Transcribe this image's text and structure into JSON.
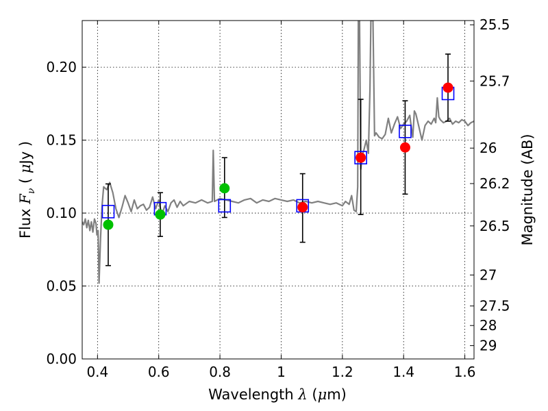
{
  "chart_data": {
    "type": "scatter",
    "xlabel": {
      "prefix": "Wavelength  ",
      "symbol": "λ",
      "unit_open": " (",
      "mu": "μ",
      "unit_rest": "m)"
    },
    "ylabel": {
      "prefix": "Flux  ",
      "symbol": "F",
      "sub": "ν",
      "unit_open": "  ( ",
      "mu": "μ",
      "unit_rest": "Jy )"
    },
    "ylabel_right": "Magnitude (AB)",
    "xlim": [
      0.35,
      1.63
    ],
    "ylim": [
      0.0,
      0.232
    ],
    "x_ticks": [
      0.4,
      0.6,
      0.8,
      1.0,
      1.2,
      1.4,
      1.6
    ],
    "x_tick_labels": [
      "0.4",
      "0.6",
      "0.8",
      "1",
      "1.2",
      "1.4",
      "1.6"
    ],
    "y_ticks": [
      0.0,
      0.05,
      0.1,
      0.15,
      0.2
    ],
    "y_tick_labels": [
      "0.00",
      "0.05",
      "0.10",
      "0.15",
      "0.20"
    ],
    "right_ticks": [
      {
        "label": "25.5",
        "mag": 25.5
      },
      {
        "label": "25.7",
        "mag": 25.7
      },
      {
        "label": "26",
        "mag": 26.0
      },
      {
        "label": "26.2",
        "mag": 26.2
      },
      {
        "label": "26.5",
        "mag": 26.5
      },
      {
        "label": "27",
        "mag": 27.0
      },
      {
        "label": "27.5",
        "mag": 27.5
      },
      {
        "label": "28",
        "mag": 28.0
      },
      {
        "label": "29",
        "mag": 29.0
      }
    ],
    "grid": true,
    "colors": {
      "spectrum": "#808080",
      "green_points": "#00c000",
      "red_points": "#ff0000",
      "model_boxes": "#0000ff",
      "errorbars": "#000000"
    },
    "spectrum": [
      [
        0.35,
        0.094
      ],
      [
        0.355,
        0.092
      ],
      [
        0.36,
        0.096
      ],
      [
        0.365,
        0.09
      ],
      [
        0.37,
        0.095
      ],
      [
        0.375,
        0.088
      ],
      [
        0.38,
        0.094
      ],
      [
        0.385,
        0.087
      ],
      [
        0.39,
        0.096
      ],
      [
        0.395,
        0.093
      ],
      [
        0.398,
        0.085
      ],
      [
        0.402,
        0.088
      ],
      [
        0.405,
        0.052
      ],
      [
        0.41,
        0.083
      ],
      [
        0.415,
        0.105
      ],
      [
        0.42,
        0.118
      ],
      [
        0.43,
        0.116
      ],
      [
        0.44,
        0.121
      ],
      [
        0.45,
        0.114
      ],
      [
        0.46,
        0.103
      ],
      [
        0.47,
        0.097
      ],
      [
        0.48,
        0.104
      ],
      [
        0.49,
        0.112
      ],
      [
        0.5,
        0.107
      ],
      [
        0.51,
        0.101
      ],
      [
        0.52,
        0.109
      ],
      [
        0.53,
        0.103
      ],
      [
        0.54,
        0.105
      ],
      [
        0.55,
        0.106
      ],
      [
        0.56,
        0.102
      ],
      [
        0.57,
        0.104
      ],
      [
        0.58,
        0.111
      ],
      [
        0.59,
        0.103
      ],
      [
        0.6,
        0.109
      ],
      [
        0.61,
        0.099
      ],
      [
        0.62,
        0.105
      ],
      [
        0.63,
        0.101
      ],
      [
        0.64,
        0.107
      ],
      [
        0.65,
        0.109
      ],
      [
        0.66,
        0.104
      ],
      [
        0.67,
        0.108
      ],
      [
        0.68,
        0.105
      ],
      [
        0.7,
        0.108
      ],
      [
        0.72,
        0.107
      ],
      [
        0.74,
        0.109
      ],
      [
        0.76,
        0.107
      ],
      [
        0.775,
        0.108
      ],
      [
        0.778,
        0.143
      ],
      [
        0.782,
        0.108
      ],
      [
        0.8,
        0.11
      ],
      [
        0.82,
        0.109
      ],
      [
        0.84,
        0.108
      ],
      [
        0.86,
        0.107
      ],
      [
        0.88,
        0.109
      ],
      [
        0.9,
        0.11
      ],
      [
        0.92,
        0.107
      ],
      [
        0.94,
        0.109
      ],
      [
        0.96,
        0.108
      ],
      [
        0.98,
        0.11
      ],
      [
        1.0,
        0.109
      ],
      [
        1.02,
        0.108
      ],
      [
        1.04,
        0.109
      ],
      [
        1.06,
        0.107
      ],
      [
        1.08,
        0.108
      ],
      [
        1.1,
        0.107
      ],
      [
        1.12,
        0.108
      ],
      [
        1.14,
        0.107
      ],
      [
        1.16,
        0.106
      ],
      [
        1.18,
        0.107
      ],
      [
        1.2,
        0.105
      ],
      [
        1.21,
        0.108
      ],
      [
        1.222,
        0.106
      ],
      [
        1.23,
        0.112
      ],
      [
        1.238,
        0.102
      ],
      [
        1.245,
        0.101
      ],
      [
        1.25,
        0.118
      ],
      [
        1.252,
        0.232
      ],
      [
        1.256,
        0.232
      ],
      [
        1.26,
        0.13
      ],
      [
        1.265,
        0.14
      ],
      [
        1.27,
        0.143
      ],
      [
        1.278,
        0.15
      ],
      [
        1.285,
        0.141
      ],
      [
        1.29,
        0.185
      ],
      [
        1.293,
        0.232
      ],
      [
        1.3,
        0.232
      ],
      [
        1.305,
        0.153
      ],
      [
        1.31,
        0.155
      ],
      [
        1.32,
        0.152
      ],
      [
        1.33,
        0.151
      ],
      [
        1.34,
        0.154
      ],
      [
        1.35,
        0.165
      ],
      [
        1.36,
        0.155
      ],
      [
        1.37,
        0.161
      ],
      [
        1.38,
        0.166
      ],
      [
        1.39,
        0.158
      ],
      [
        1.4,
        0.161
      ],
      [
        1.41,
        0.163
      ],
      [
        1.42,
        0.167
      ],
      [
        1.425,
        0.159
      ],
      [
        1.43,
        0.152
      ],
      [
        1.435,
        0.17
      ],
      [
        1.44,
        0.168
      ],
      [
        1.45,
        0.159
      ],
      [
        1.46,
        0.15
      ],
      [
        1.47,
        0.16
      ],
      [
        1.48,
        0.163
      ],
      [
        1.49,
        0.161
      ],
      [
        1.5,
        0.165
      ],
      [
        1.505,
        0.162
      ],
      [
        1.51,
        0.179
      ],
      [
        1.515,
        0.166
      ],
      [
        1.52,
        0.164
      ],
      [
        1.53,
        0.162
      ],
      [
        1.54,
        0.163
      ],
      [
        1.55,
        0.165
      ],
      [
        1.56,
        0.161
      ],
      [
        1.57,
        0.163
      ],
      [
        1.58,
        0.162
      ],
      [
        1.59,
        0.164
      ],
      [
        1.6,
        0.163
      ],
      [
        1.61,
        0.16
      ],
      [
        1.62,
        0.162
      ],
      [
        1.63,
        0.163
      ]
    ],
    "green_points": [
      {
        "x": 0.435,
        "y": 0.092
      },
      {
        "x": 0.605,
        "y": 0.099
      },
      {
        "x": 0.815,
        "y": 0.117
      }
    ],
    "red_points": [
      {
        "x": 1.07,
        "y": 0.104
      },
      {
        "x": 1.26,
        "y": 0.138
      },
      {
        "x": 1.405,
        "y": 0.145
      },
      {
        "x": 1.545,
        "y": 0.186
      }
    ],
    "model_boxes": [
      {
        "x": 0.435,
        "y": 0.101
      },
      {
        "x": 0.605,
        "y": 0.103
      },
      {
        "x": 0.815,
        "y": 0.105
      },
      {
        "x": 1.07,
        "y": 0.105
      },
      {
        "x": 1.26,
        "y": 0.138
      },
      {
        "x": 1.405,
        "y": 0.156
      },
      {
        "x": 1.545,
        "y": 0.182
      }
    ],
    "errorbars": [
      {
        "x": 0.435,
        "low": 0.064,
        "high": 0.12
      },
      {
        "x": 0.605,
        "low": 0.084,
        "high": 0.114
      },
      {
        "x": 0.815,
        "low": 0.097,
        "high": 0.138
      },
      {
        "x": 1.07,
        "low": 0.08,
        "high": 0.127
      },
      {
        "x": 1.26,
        "low": 0.099,
        "high": 0.178
      },
      {
        "x": 1.405,
        "low": 0.113,
        "high": 0.177
      },
      {
        "x": 1.545,
        "low": 0.163,
        "high": 0.209
      }
    ]
  }
}
